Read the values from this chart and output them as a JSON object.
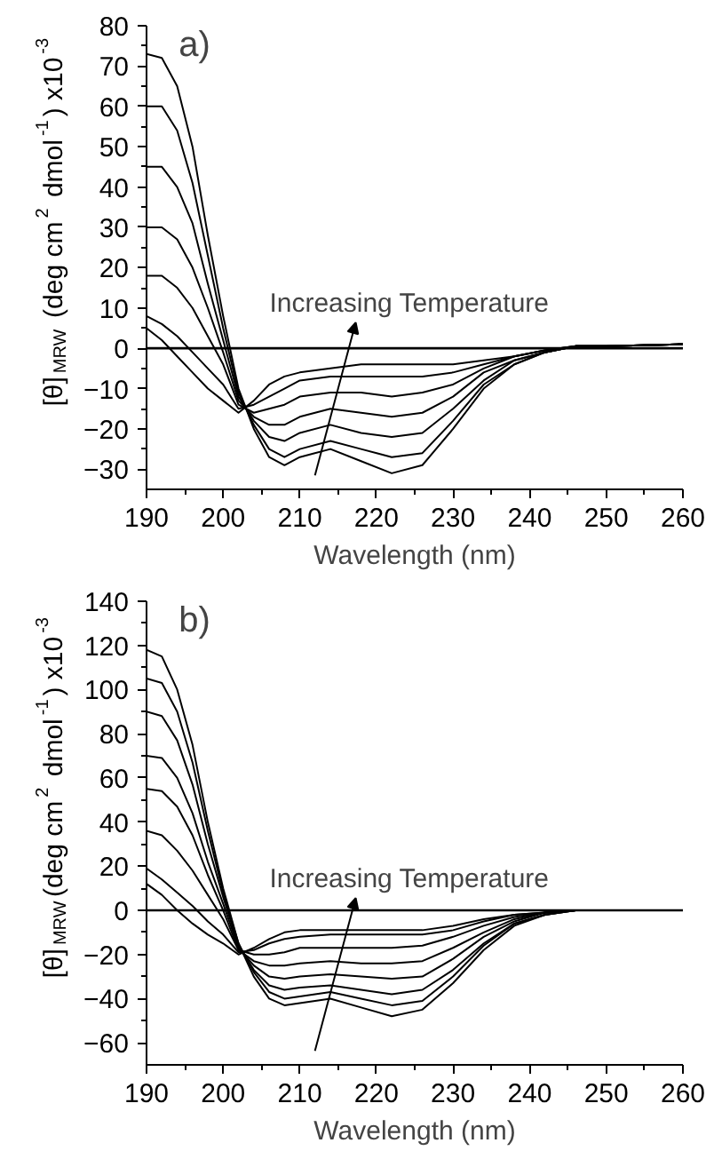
{
  "chart_data": [
    {
      "type": "line",
      "xlabel": "Wavelength (nm)",
      "ylabel": "[θ]$_{MRW}$ (deg cm$^{2}$ dmol$^{-1}$) x10$^{-3}$",
      "annotations": [
        "a)",
        "Increasing Temperature"
      ],
      "x": [
        190,
        192,
        194,
        196,
        198,
        200,
        202,
        204,
        206,
        208,
        210,
        214,
        218,
        222,
        226,
        230,
        234,
        238,
        242,
        246,
        250,
        260
      ],
      "xlim": [
        190,
        260
      ],
      "ylim": [
        -35,
        80
      ],
      "xticks": [
        190,
        200,
        210,
        220,
        230,
        240,
        250,
        260
      ],
      "yticks": [
        -30,
        -20,
        -10,
        0,
        10,
        20,
        30,
        40,
        50,
        60,
        70,
        80
      ],
      "ref_lines": [
        {
          "axis": "y",
          "value": 0,
          "color": "#000000"
        }
      ],
      "series": [
        {
          "color": "#000000",
          "values": [
            73,
            72,
            65,
            50,
            28,
            8,
            -10,
            -20,
            -27,
            -29,
            -27,
            -25,
            -28,
            -31,
            -29,
            -20,
            -10,
            -4,
            -1,
            0.5,
            0.5,
            1
          ]
        },
        {
          "color": "#000000",
          "values": [
            60,
            60,
            54,
            41,
            23,
            5,
            -11,
            -19,
            -25,
            -27,
            -25,
            -23,
            -25,
            -27,
            -26,
            -18,
            -9,
            -4,
            -1,
            0.5,
            0.5,
            1
          ]
        },
        {
          "color": "#000000",
          "values": [
            45,
            45,
            40,
            31,
            16,
            2,
            -12,
            -18,
            -22,
            -23,
            -21,
            -19,
            -21,
            -22,
            -21,
            -15,
            -8,
            -3,
            -1,
            0.5,
            0.5,
            1
          ]
        },
        {
          "color": "#000000",
          "values": [
            30,
            30,
            27,
            20,
            10,
            -1,
            -13,
            -17,
            -19,
            -19,
            -17,
            -15,
            -16,
            -17,
            -16,
            -12,
            -6,
            -3,
            -1,
            0.5,
            0.5,
            1
          ]
        },
        {
          "color": "#000000",
          "values": [
            18,
            18,
            15,
            10,
            3,
            -4,
            -14,
            -16,
            -15,
            -14,
            -12,
            -11,
            -11,
            -12,
            -11,
            -9,
            -5,
            -2,
            -0.5,
            0.5,
            0.5,
            1
          ]
        },
        {
          "color": "#000000",
          "values": [
            8,
            6,
            3,
            -1,
            -5,
            -9,
            -15,
            -14,
            -12,
            -10,
            -8,
            -7,
            -7,
            -7,
            -7,
            -6,
            -4,
            -2,
            -0.5,
            0.5,
            0.5,
            1
          ]
        },
        {
          "color": "#000000",
          "values": [
            5,
            2,
            -2,
            -6,
            -10,
            -13,
            -16,
            -13,
            -9,
            -7,
            -6,
            -5,
            -4,
            -4,
            -4,
            -4,
            -3,
            -2,
            -0.5,
            0.5,
            0.5,
            1
          ]
        }
      ]
    },
    {
      "type": "line",
      "xlabel": "Wavelength (nm)",
      "ylabel": "[θ]$_{MRW}$(deg cm$^{2}$ dmol$^{-1}$) x10$^{-3}$",
      "annotations": [
        "b)",
        "Increasing Temperature"
      ],
      "x": [
        190,
        192,
        194,
        196,
        198,
        200,
        202,
        204,
        206,
        208,
        210,
        214,
        218,
        222,
        226,
        230,
        234,
        238,
        242,
        246,
        250,
        260
      ],
      "xlim": [
        190,
        260
      ],
      "ylim": [
        -70,
        140
      ],
      "xticks": [
        190,
        200,
        210,
        220,
        230,
        240,
        250,
        260
      ],
      "yticks": [
        -60,
        -40,
        -20,
        0,
        20,
        40,
        60,
        80,
        100,
        120,
        140
      ],
      "ref_lines": [
        {
          "axis": "y",
          "value": 0,
          "color": "#000000"
        }
      ],
      "series": [
        {
          "color": "#000000",
          "values": [
            118,
            115,
            100,
            75,
            40,
            10,
            -15,
            -30,
            -40,
            -43,
            -42,
            -40,
            -44,
            -48,
            -45,
            -33,
            -18,
            -7,
            -2,
            0,
            0,
            0
          ]
        },
        {
          "color": "#000000",
          "values": [
            105,
            103,
            90,
            67,
            36,
            8,
            -15,
            -28,
            -37,
            -40,
            -39,
            -37,
            -40,
            -43,
            -41,
            -30,
            -16,
            -6,
            -2,
            0,
            0,
            0
          ]
        },
        {
          "color": "#000000",
          "values": [
            90,
            88,
            77,
            57,
            30,
            6,
            -16,
            -27,
            -34,
            -36,
            -35,
            -34,
            -36,
            -38,
            -36,
            -27,
            -15,
            -6,
            -2,
            0,
            0,
            0
          ]
        },
        {
          "color": "#000000",
          "values": [
            70,
            69,
            60,
            44,
            22,
            3,
            -17,
            -25,
            -30,
            -31,
            -30,
            -29,
            -30,
            -31,
            -30,
            -22,
            -12,
            -5,
            -1,
            0,
            0,
            0
          ]
        },
        {
          "color": "#000000",
          "values": [
            55,
            54,
            47,
            34,
            16,
            0,
            -18,
            -23,
            -25,
            -25,
            -24,
            -23,
            -24,
            -24,
            -23,
            -17,
            -10,
            -4,
            -1,
            0,
            0,
            0
          ]
        },
        {
          "color": "#000000",
          "values": [
            36,
            34,
            27,
            18,
            7,
            -4,
            -18,
            -20,
            -20,
            -19,
            -17,
            -17,
            -17,
            -17,
            -16,
            -12,
            -7,
            -3,
            -1,
            0,
            0,
            0
          ]
        },
        {
          "color": "#000000",
          "values": [
            19,
            14,
            8,
            2,
            -5,
            -11,
            -19,
            -18,
            -15,
            -13,
            -12,
            -11,
            -11,
            -11,
            -11,
            -9,
            -5,
            -2,
            -1,
            0,
            0,
            0
          ]
        },
        {
          "color": "#000000",
          "values": [
            12,
            7,
            0,
            -6,
            -11,
            -15,
            -20,
            -17,
            -13,
            -10,
            -9,
            -9,
            -9,
            -9,
            -9,
            -7,
            -4,
            -2,
            -1,
            0,
            0,
            0
          ]
        }
      ]
    }
  ]
}
